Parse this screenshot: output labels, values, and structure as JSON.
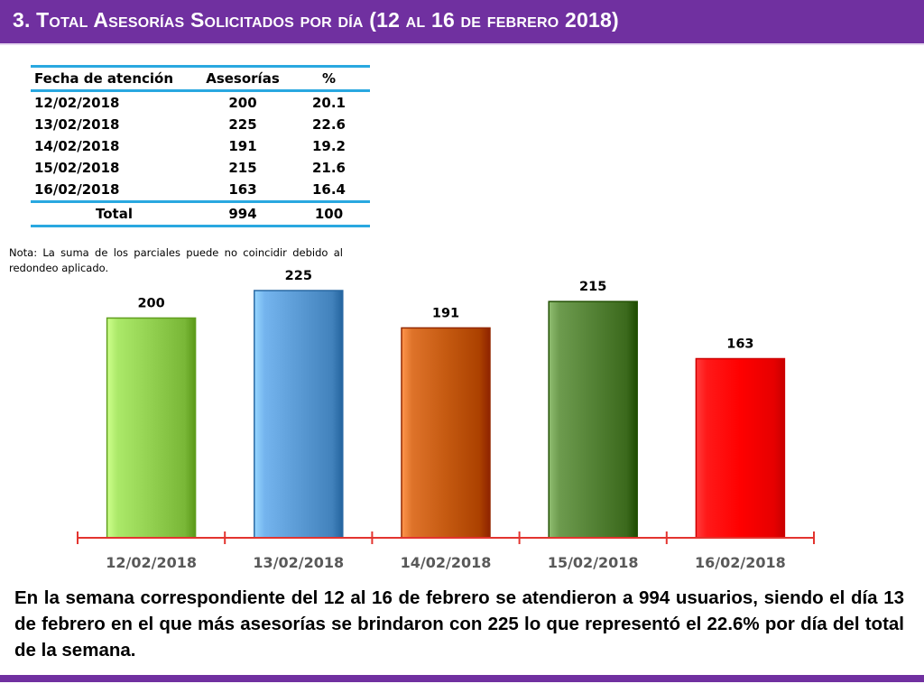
{
  "header": {
    "title": "3.  Total Asesorías Solicitados por día  (12 al 16 de febrero 2018)"
  },
  "table": {
    "headers": [
      "Fecha de atención",
      "Asesorías",
      "%"
    ],
    "rows": [
      [
        "12/02/2018",
        "200",
        "20.1"
      ],
      [
        "13/02/2018",
        "225",
        "22.6"
      ],
      [
        "14/02/2018",
        "191",
        "19.2"
      ],
      [
        "15/02/2018",
        "215",
        "21.6"
      ],
      [
        "16/02/2018",
        "163",
        "16.4"
      ]
    ],
    "total": [
      "Total",
      "994",
      "100"
    ]
  },
  "note": "Nota: La suma de los parciales puede no coincidir debido al redondeo aplicado.",
  "chart_data": {
    "type": "bar",
    "categories": [
      "12/02/2018",
      "13/02/2018",
      "14/02/2018",
      "15/02/2018",
      "16/02/2018"
    ],
    "values": [
      200,
      225,
      191,
      215,
      163
    ],
    "data_labels": [
      "200",
      "225",
      "191",
      "215",
      "163"
    ],
    "bar_colors": [
      "#92d050",
      "#5b9bd5",
      "#c55a11",
      "#548235",
      "#ff0000"
    ],
    "axis_color": "#e3342f",
    "ylim": [
      0,
      225
    ],
    "grid": false,
    "legend": "none"
  },
  "summary": "En la semana correspondiente del 12 al 16 de febrero se atendieron a 994 usuarios, siendo el día 13 de febrero en el que más asesorías se brindaron con 225 lo que representó el 22.6% por día del total de la semana."
}
